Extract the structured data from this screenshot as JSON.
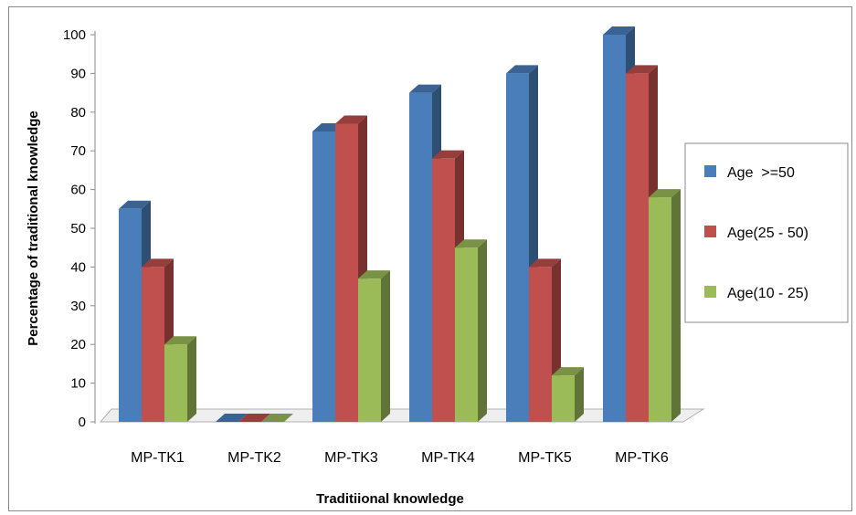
{
  "chart_data": {
    "type": "bar",
    "title": "",
    "xlabel": "Traditiional knowledge",
    "ylabel": "Percentage of traditional knowledge",
    "categories": [
      "MP-TK1",
      "MP-TK2",
      "MP-TK3",
      "MP-TK4",
      "MP-TK5",
      "MP-TK6"
    ],
    "series": [
      {
        "name": "Age  >=50",
        "values": [
          55,
          0,
          75,
          85,
          90,
          100
        ],
        "color": "#4a7ebb"
      },
      {
        "name": "Age(25 - 50)",
        "values": [
          40,
          0,
          77,
          68,
          40,
          90
        ],
        "color": "#c0504d"
      },
      {
        "name": "Age(10 - 25)",
        "values": [
          20,
          0,
          37,
          45,
          12,
          58
        ],
        "color": "#9bbb59"
      }
    ],
    "yticks": [
      "0",
      "10",
      "20",
      "30",
      "40",
      "50",
      "60",
      "70",
      "80",
      "90",
      "100"
    ],
    "ylim": [
      0,
      100
    ],
    "grid": false,
    "legend_position": "right",
    "style": "3d-column"
  }
}
